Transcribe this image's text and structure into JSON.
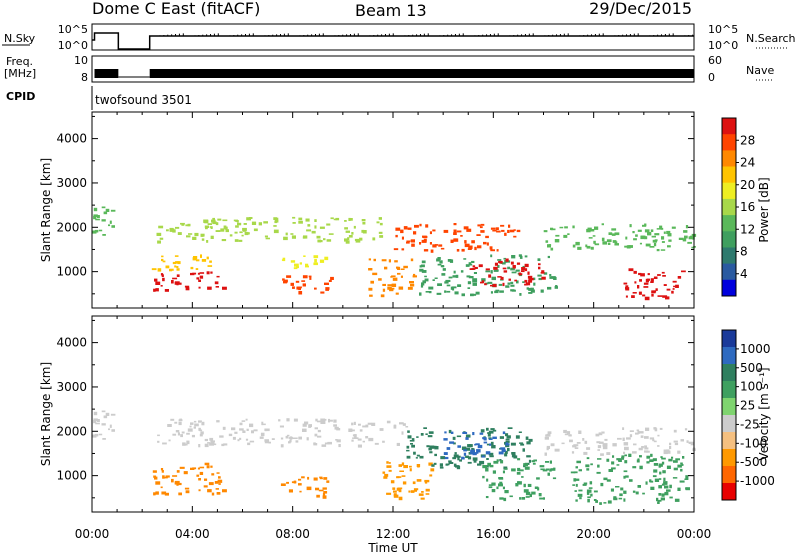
{
  "header": {
    "station": "Dome C East (fitACF)",
    "beam": "Beam 13",
    "date": "29/Dec/2015"
  },
  "left_labels": {
    "nsky": "N.Sky",
    "freq": "Freq.",
    "freq_unit": "[MHz]",
    "cpid": "CPID"
  },
  "right_labels": {
    "nsearch": "N.Search",
    "nave": "Nave"
  },
  "nsky_ticks": {
    "top": "10^5",
    "bottom": "10^0"
  },
  "nsearch_ticks": {
    "top": "10^5",
    "bottom": "10^0"
  },
  "freq_ticks": {
    "top": "10",
    "bottom": "8"
  },
  "nave_ticks": {
    "top": "60",
    "bottom": "0"
  },
  "cpid_value": "twofsound 3501",
  "power_colorbar": {
    "label": "Power [dB]",
    "ticks": [
      "28",
      "24",
      "20",
      "16",
      "12",
      "8",
      "4"
    ],
    "colors": [
      "#dd1111",
      "#ff4400",
      "#ff8800",
      "#ffc400",
      "#eeee22",
      "#a8d84a",
      "#5ab85a",
      "#3f9f5f",
      "#2e7a6e",
      "#2a5aa0",
      "#0000dd"
    ]
  },
  "velocity_colorbar": {
    "label": "Velocity [m s⁻¹]",
    "ticks": [
      "1000",
      "500",
      "100",
      "25",
      "-25",
      "-100",
      "-500",
      "-1000"
    ],
    "colors": [
      "#1a3a9a",
      "#2e6ac0",
      "#2f7f5f",
      "#3fa060",
      "#7fd46f",
      "#cccccc",
      "#f5c080",
      "#ff9900",
      "#ff6600",
      "#e80000"
    ]
  },
  "chart_data": [
    {
      "type": "heatmap",
      "name_hint": "power",
      "ylabel": "Slant Range [km]",
      "ylim": [
        180,
        4600
      ],
      "yticks": [
        1000,
        2000,
        3000,
        4000
      ],
      "x": [
        "00:00",
        "04:00",
        "08:00",
        "12:00",
        "16:00",
        "20:00",
        "00:00"
      ],
      "bands": [
        {
          "t0": 0.0,
          "t1": 1.0,
          "r0": 1750,
          "r1": 2500,
          "c": "#5ab85a"
        },
        {
          "t0": 2.3,
          "t1": 5.2,
          "r0": 600,
          "r1": 1050,
          "c": "#dd1111"
        },
        {
          "t0": 2.3,
          "t1": 5.2,
          "r0": 1050,
          "r1": 1400,
          "c": "#ffc400"
        },
        {
          "t0": 2.5,
          "t1": 11.5,
          "r0": 1700,
          "r1": 2250,
          "c": "#a8d84a"
        },
        {
          "t0": 7.5,
          "t1": 9.5,
          "r0": 550,
          "r1": 1000,
          "c": "#ff4400"
        },
        {
          "t0": 7.5,
          "t1": 9.5,
          "r0": 1100,
          "r1": 1400,
          "c": "#eeee22"
        },
        {
          "t0": 11.0,
          "t1": 12.8,
          "r0": 450,
          "r1": 1300,
          "c": "#ff8800"
        },
        {
          "t0": 12.0,
          "t1": 17.0,
          "r0": 1500,
          "r1": 2100,
          "c": "#ff4400"
        },
        {
          "t0": 13.0,
          "t1": 18.5,
          "r0": 500,
          "r1": 1400,
          "c": "#3f9f5f"
        },
        {
          "t0": 15.0,
          "t1": 18.0,
          "r0": 700,
          "r1": 1300,
          "c": "#dd1111"
        },
        {
          "t0": 18.0,
          "t1": 24.0,
          "r0": 1500,
          "r1": 2100,
          "c": "#5ab85a"
        },
        {
          "t0": 21.0,
          "t1": 23.5,
          "r0": 400,
          "r1": 1100,
          "c": "#dd1111"
        }
      ],
      "legend": "right colorbar"
    },
    {
      "type": "heatmap",
      "name_hint": "velocity",
      "ylabel": "Slant Range [km]",
      "xlabel": "Time UT",
      "ylim": [
        180,
        4600
      ],
      "yticks": [
        1000,
        2000,
        3000,
        4000
      ],
      "x": [
        "00:00",
        "04:00",
        "08:00",
        "12:00",
        "16:00",
        "20:00",
        "00:00"
      ],
      "bands": [
        {
          "t0": 0.0,
          "t1": 1.0,
          "r0": 1750,
          "r1": 2500,
          "c": "#cccccc"
        },
        {
          "t0": 2.3,
          "t1": 5.2,
          "r0": 600,
          "r1": 1300,
          "c": "#ff8800"
        },
        {
          "t0": 2.5,
          "t1": 12.5,
          "r0": 1700,
          "r1": 2300,
          "c": "#cccccc"
        },
        {
          "t0": 7.5,
          "t1": 9.5,
          "r0": 550,
          "r1": 1000,
          "c": "#ff8800"
        },
        {
          "t0": 11.5,
          "t1": 13.5,
          "r0": 500,
          "r1": 1400,
          "c": "#ff9900"
        },
        {
          "t0": 12.5,
          "t1": 17.5,
          "r0": 1200,
          "r1": 2100,
          "c": "#2f7f5f"
        },
        {
          "t0": 14.0,
          "t1": 16.5,
          "r0": 1400,
          "r1": 2000,
          "c": "#2e6ac0"
        },
        {
          "t0": 15.5,
          "t1": 18.5,
          "r0": 500,
          "r1": 1400,
          "c": "#3fa060"
        },
        {
          "t0": 18.0,
          "t1": 24.0,
          "r0": 1500,
          "r1": 2100,
          "c": "#cccccc"
        },
        {
          "t0": 19.0,
          "t1": 23.8,
          "r0": 400,
          "r1": 1500,
          "c": "#3f9f5f"
        }
      ],
      "legend": "right colorbar"
    }
  ]
}
